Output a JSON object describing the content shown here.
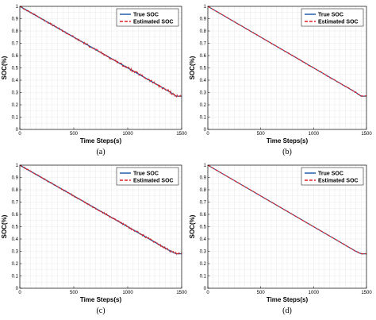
{
  "chart_data": [
    {
      "type": "line",
      "caption": "(a)",
      "xlabel": "Time Steps(s)",
      "ylabel": "SOC(%)",
      "xlim": [
        0,
        1500
      ],
      "ylim": [
        0,
        1
      ],
      "xticks": [
        "0",
        "500",
        "1000",
        "1500"
      ],
      "yticks": [
        "0",
        "0.1",
        "0.2",
        "0.3",
        "0.4",
        "0.5",
        "0.6",
        "0.7",
        "0.8",
        "0.9",
        "1"
      ],
      "grid": true,
      "legend_position": "top-right",
      "series": [
        {
          "name": "True SOC",
          "color": "#1f5fa8",
          "style": "solid",
          "x": [
            0,
            100,
            200,
            300,
            400,
            500,
            600,
            700,
            800,
            900,
            1000,
            1100,
            1200,
            1300,
            1400,
            1450,
            1500
          ],
          "y": [
            1.0,
            0.95,
            0.9,
            0.85,
            0.8,
            0.75,
            0.7,
            0.65,
            0.6,
            0.55,
            0.5,
            0.45,
            0.4,
            0.35,
            0.3,
            0.27,
            0.27
          ]
        },
        {
          "name": "Estimated SOC",
          "color": "#e02020",
          "style": "dashed",
          "x": [
            0,
            100,
            200,
            300,
            400,
            500,
            600,
            700,
            800,
            900,
            1000,
            1100,
            1200,
            1300,
            1400,
            1450,
            1500
          ],
          "y": [
            1.0,
            0.95,
            0.9,
            0.85,
            0.8,
            0.75,
            0.7,
            0.65,
            0.6,
            0.55,
            0.5,
            0.45,
            0.4,
            0.35,
            0.3,
            0.27,
            0.27
          ],
          "noise": 0.012
        }
      ]
    },
    {
      "type": "line",
      "caption": "(b)",
      "xlabel": "Time Steps(s)",
      "ylabel": "SOC(%)",
      "xlim": [
        0,
        1500
      ],
      "ylim": [
        0,
        1
      ],
      "xticks": [
        "0",
        "500",
        "1000",
        "1500"
      ],
      "yticks": [
        "0",
        "0.1",
        "0.2",
        "0.3",
        "0.4",
        "0.5",
        "0.6",
        "0.7",
        "0.8",
        "0.9",
        "1"
      ],
      "grid": true,
      "legend_position": "top-right",
      "series": [
        {
          "name": "True SOC",
          "color": "#1f5fa8",
          "style": "solid",
          "x": [
            0,
            100,
            200,
            300,
            400,
            500,
            600,
            700,
            800,
            900,
            1000,
            1100,
            1200,
            1300,
            1400,
            1450,
            1500
          ],
          "y": [
            1.0,
            0.95,
            0.9,
            0.85,
            0.8,
            0.75,
            0.7,
            0.65,
            0.6,
            0.55,
            0.5,
            0.45,
            0.4,
            0.35,
            0.3,
            0.27,
            0.27
          ]
        },
        {
          "name": "Estimated SOC",
          "color": "#e02020",
          "style": "dashed",
          "x": [
            0,
            100,
            200,
            300,
            400,
            500,
            600,
            700,
            800,
            900,
            1000,
            1100,
            1200,
            1300,
            1400,
            1450,
            1500
          ],
          "y": [
            1.0,
            0.95,
            0.9,
            0.85,
            0.8,
            0.75,
            0.7,
            0.65,
            0.6,
            0.55,
            0.5,
            0.45,
            0.4,
            0.35,
            0.3,
            0.27,
            0.27
          ],
          "noise": 0.004
        }
      ]
    },
    {
      "type": "line",
      "caption": "(c)",
      "xlabel": "Time Steps(s)",
      "ylabel": "SOC(%)",
      "xlim": [
        0,
        1500
      ],
      "ylim": [
        0,
        1
      ],
      "xticks": [
        "0",
        "500",
        "1000",
        "1500"
      ],
      "yticks": [
        "0",
        "0.1",
        "0.2",
        "0.3",
        "0.4",
        "0.5",
        "0.6",
        "0.7",
        "0.8",
        "0.9",
        "1"
      ],
      "grid": true,
      "legend_position": "top-right",
      "series": [
        {
          "name": "True SOC",
          "color": "#1f5fa8",
          "style": "solid",
          "x": [
            0,
            100,
            200,
            300,
            400,
            500,
            600,
            700,
            800,
            900,
            1000,
            1100,
            1200,
            1300,
            1400,
            1450,
            1500
          ],
          "y": [
            1.0,
            0.95,
            0.9,
            0.85,
            0.8,
            0.75,
            0.7,
            0.65,
            0.6,
            0.55,
            0.5,
            0.45,
            0.4,
            0.35,
            0.3,
            0.28,
            0.28
          ]
        },
        {
          "name": "Estimated SOC",
          "color": "#e02020",
          "style": "dashed",
          "x": [
            0,
            100,
            200,
            300,
            400,
            500,
            600,
            700,
            800,
            900,
            1000,
            1100,
            1200,
            1300,
            1400,
            1450,
            1500
          ],
          "y": [
            1.0,
            0.95,
            0.9,
            0.85,
            0.8,
            0.75,
            0.7,
            0.65,
            0.6,
            0.55,
            0.5,
            0.45,
            0.4,
            0.35,
            0.3,
            0.28,
            0.28
          ],
          "noise": 0.009
        }
      ]
    },
    {
      "type": "line",
      "caption": "(d)",
      "xlabel": "Time Steps(s)",
      "ylabel": "SOC(%)",
      "xlim": [
        0,
        1500
      ],
      "ylim": [
        0,
        1
      ],
      "xticks": [
        "0",
        "500",
        "1000",
        "1500"
      ],
      "yticks": [
        "0",
        "0.1",
        "0.2",
        "0.3",
        "0.4",
        "0.5",
        "0.6",
        "0.7",
        "0.8",
        "0.9",
        "1"
      ],
      "grid": true,
      "legend_position": "top-right",
      "series": [
        {
          "name": "True SOC",
          "color": "#1f5fa8",
          "style": "solid",
          "x": [
            0,
            100,
            200,
            300,
            400,
            500,
            600,
            700,
            800,
            900,
            1000,
            1100,
            1200,
            1300,
            1400,
            1450,
            1500
          ],
          "y": [
            1.0,
            0.95,
            0.9,
            0.85,
            0.8,
            0.75,
            0.7,
            0.65,
            0.6,
            0.55,
            0.5,
            0.45,
            0.4,
            0.35,
            0.3,
            0.28,
            0.28
          ]
        },
        {
          "name": "Estimated SOC",
          "color": "#e02020",
          "style": "dashed",
          "x": [
            0,
            100,
            200,
            300,
            400,
            500,
            600,
            700,
            800,
            900,
            1000,
            1100,
            1200,
            1300,
            1400,
            1450,
            1500
          ],
          "y": [
            1.0,
            0.95,
            0.9,
            0.85,
            0.8,
            0.75,
            0.7,
            0.65,
            0.6,
            0.55,
            0.5,
            0.45,
            0.4,
            0.35,
            0.3,
            0.28,
            0.28
          ],
          "noise": 0.002
        }
      ]
    }
  ]
}
